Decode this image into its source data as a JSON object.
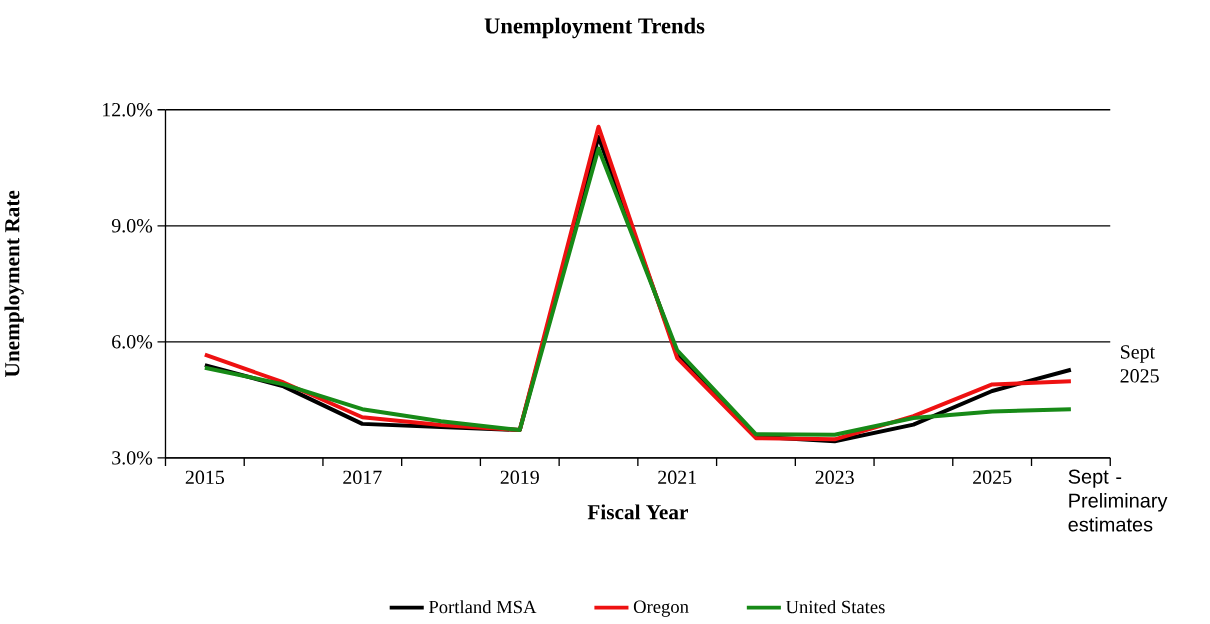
{
  "chart_data": {
    "type": "line",
    "title": "Unemployment Trends",
    "xlabel": "Fiscal Year",
    "ylabel": "Unemployment Rate",
    "categories": [
      "2015",
      null,
      "2017",
      null,
      "2019",
      null,
      "2021",
      null,
      "2023",
      null,
      "2025",
      null
    ],
    "series": [
      {
        "name": "Portland MSA",
        "color": "#000000",
        "values": [
          5.4,
          4.85,
          3.88,
          3.8,
          3.72,
          11.3,
          5.68,
          3.55,
          3.43,
          3.86,
          4.73,
          5.28
        ]
      },
      {
        "name": "Oregon",
        "color": "#ee1111",
        "values": [
          5.67,
          4.95,
          4.05,
          3.85,
          3.72,
          11.56,
          5.58,
          3.51,
          3.48,
          4.08,
          4.9,
          4.98
        ]
      },
      {
        "name": "United States",
        "color": "#178a17",
        "values": [
          5.33,
          4.9,
          4.26,
          3.95,
          3.72,
          11.0,
          5.78,
          3.61,
          3.6,
          4.03,
          4.2,
          4.26
        ]
      }
    ],
    "ylim": [
      3,
      12
    ],
    "yticks": [
      {
        "value": 3,
        "label": "3.0%"
      },
      {
        "value": 6,
        "label": "6.0%"
      },
      {
        "value": 9,
        "label": "9.0%"
      },
      {
        "value": 12,
        "label": "12.0%"
      }
    ],
    "grid": "y",
    "legend": "bottom",
    "marker": "none",
    "line_style": "solid",
    "annotations": [
      "Sept 2025",
      "Sept - Preliminary estimates"
    ]
  }
}
